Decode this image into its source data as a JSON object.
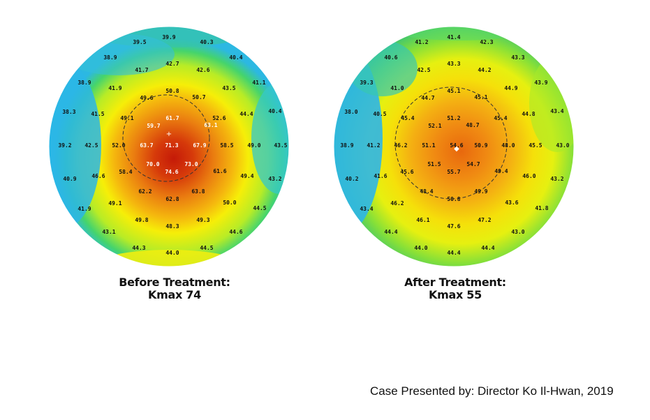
{
  "before": {
    "caption_line1": "Before Treatment:",
    "caption_line2": "Kmax 74",
    "values": [
      "39.9",
      "39.5",
      "40.3",
      "38.9",
      "40.4",
      "42.7",
      "41.7",
      "42.6",
      "38.9",
      "41.9",
      "43.5",
      "41.1",
      "50.8",
      "49.6",
      "50.7",
      "38.3",
      "41.5",
      "49.1",
      "61.7",
      "63.1",
      "59.7",
      "52.6",
      "44.4",
      "40.4",
      "39.2",
      "42.5",
      "52.0",
      "63.7",
      "71.3",
      "67.9",
      "58.5",
      "49.0",
      "43.5",
      "70.0",
      "73.0",
      "74.6",
      "40.9",
      "46.6",
      "58.4",
      "61.6",
      "49.4",
      "43.2",
      "62.2",
      "63.8",
      "62.8",
      "41.9",
      "49.1",
      "50.0",
      "44.5",
      "49.8",
      "48.3",
      "49.3",
      "43.1",
      "44.6",
      "44.3",
      "44.0",
      "44.5"
    ]
  },
  "after": {
    "caption_line1": "After Treatment:",
    "caption_line2": "Kmax 55",
    "values": [
      "41.4",
      "41.2",
      "42.3",
      "40.6",
      "43.3",
      "43.3",
      "42.5",
      "44.2",
      "39.3",
      "41.0",
      "44.9",
      "43.9",
      "45.1",
      "44.7",
      "45.1",
      "38.0",
      "40.5",
      "45.4",
      "51.2",
      "48.7",
      "52.1",
      "45.4",
      "44.8",
      "43.4",
      "38.9",
      "41.2",
      "46.2",
      "51.1",
      "54.6",
      "50.9",
      "48.0",
      "45.5",
      "43.0",
      "51.5",
      "54.7",
      "55.7",
      "40.2",
      "41.6",
      "45.6",
      "49.4",
      "46.0",
      "43.2",
      "48.4",
      "49.9",
      "50.8",
      "43.4",
      "46.2",
      "43.6",
      "41.8",
      "46.1",
      "47.6",
      "47.2",
      "44.4",
      "43.0",
      "44.0",
      "44.4",
      "44.4"
    ]
  },
  "credit": "Case Presented by: Director Ko Il-Hwan, 2019",
  "colors": {
    "red": "#c8200a",
    "orange": "#f09018",
    "yellow": "#f6f20a",
    "green": "#3dd46a",
    "cyan": "#2eb6e8"
  }
}
